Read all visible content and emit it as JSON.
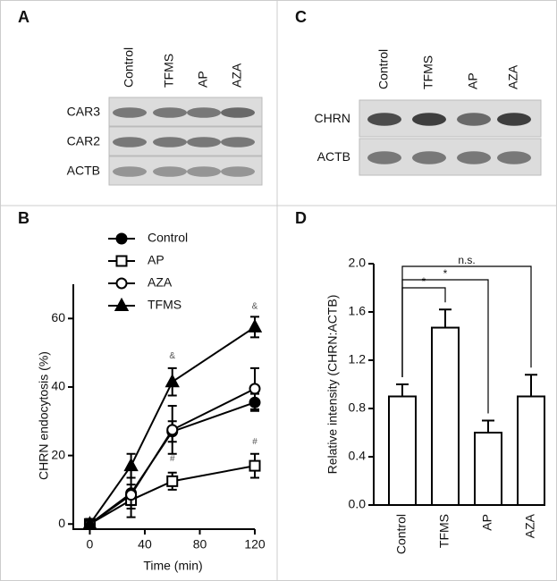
{
  "panels": {
    "A": {
      "letter": "A",
      "columns": [
        "Control",
        "TFMS",
        "AP",
        "AZA"
      ],
      "rows": [
        "CAR3",
        "CAR2",
        "ACTB"
      ]
    },
    "C": {
      "letter": "C",
      "columns": [
        "Control",
        "TFMS",
        "AP",
        "AZA"
      ],
      "rows": [
        "CHRN",
        "ACTB"
      ]
    }
  },
  "chart_data": [
    {
      "type": "line",
      "letter": "B",
      "x_label": "Time (min)",
      "y_label": "CHRN endocytosis (%)",
      "x": [
        0,
        30,
        60,
        120
      ],
      "series": [
        {
          "name": "Control",
          "color": "#000000",
          "marker": "circle-filled",
          "values": [
            0,
            9,
            27,
            35.5
          ],
          "errors": [
            1.5,
            7,
            3,
            2.5
          ]
        },
        {
          "name": "AP",
          "color": "#000000",
          "marker": "square-open",
          "values": [
            0,
            7,
            12.5,
            17
          ],
          "errors": [
            1.5,
            2.5,
            2.5,
            3.5
          ]
        },
        {
          "name": "AZA",
          "color": "#000000",
          "marker": "circle-open",
          "values": [
            0,
            8.5,
            27.5,
            39.5
          ],
          "errors": [
            1.5,
            3,
            7,
            6
          ]
        },
        {
          "name": "TFMS",
          "color": "#000000",
          "marker": "triangle-filled",
          "values": [
            0,
            17,
            41.5,
            57.5
          ],
          "errors": [
            1.5,
            3.5,
            4,
            3
          ]
        }
      ],
      "annotations": [
        {
          "text": "&",
          "x": 60,
          "y": 49
        },
        {
          "text": "&",
          "x": 120,
          "y": 63.5
        },
        {
          "text": "#",
          "x": 60,
          "y": 19
        },
        {
          "text": "#",
          "x": 120,
          "y": 24
        }
      ],
      "xlim": [
        -12,
        120
      ],
      "ylim": [
        -1.5,
        70
      ],
      "xticks": [
        0,
        40,
        80,
        120
      ],
      "yticks": [
        0,
        20,
        40,
        60
      ]
    },
    {
      "type": "bar",
      "letter": "D",
      "y_label": "Relative intensity (CHRN:ACTB)",
      "categories": [
        "Control",
        "TFMS",
        "AP",
        "AZA"
      ],
      "values": [
        0.9,
        1.47,
        0.6,
        0.9
      ],
      "errors": [
        0.1,
        0.15,
        0.1,
        0.18
      ],
      "color": "#ffffff",
      "comparisons": [
        {
          "label": "*",
          "pair": [
            "Control",
            "TFMS"
          ]
        },
        {
          "label": "*",
          "pair": [
            "Control",
            "AP"
          ]
        },
        {
          "label": "n.s.",
          "pair": [
            "Control",
            "AZA"
          ]
        }
      ],
      "ylim": [
        0,
        2.0
      ],
      "yticks": [
        {
          "value": 0,
          "label": "0.0"
        },
        0.4,
        0.8,
        1.2,
        1.6,
        {
          "value": 2.0,
          "label": "2.0"
        }
      ]
    }
  ]
}
